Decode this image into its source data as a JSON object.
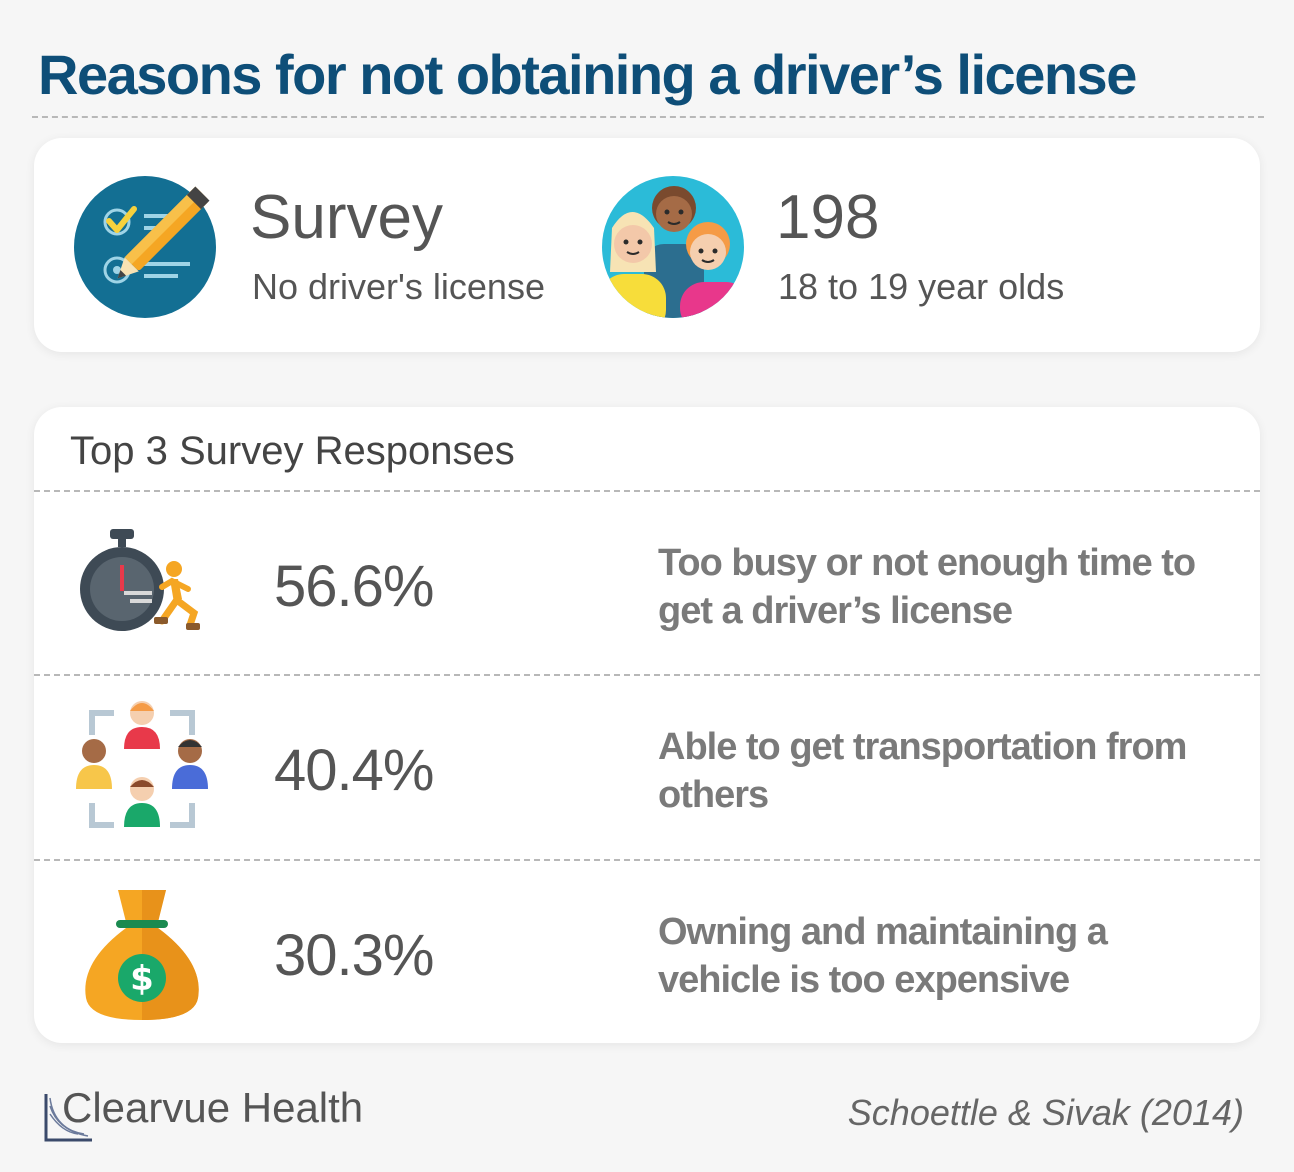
{
  "title": "Reasons for not obtaining a driver’s license",
  "summary": {
    "survey": {
      "heading": "Survey",
      "subtext": "No driver's license",
      "icon": "checklist-pencil-icon"
    },
    "sample": {
      "count": "198",
      "subtext": "18 to 19 year olds",
      "icon": "young-people-group-icon"
    }
  },
  "responses": {
    "heading": "Top 3 Survey Responses",
    "items": [
      {
        "percent": "56.6%",
        "value": 56.6,
        "text": "Too busy or not enough time to get a driver’s license",
        "icon": "stopwatch-runner-icon"
      },
      {
        "percent": "40.4%",
        "value": 40.4,
        "text": "Able to get transportation from others",
        "icon": "people-network-icon"
      },
      {
        "percent": "30.3%",
        "value": 30.3,
        "text": "Owning and maintaining a vehicle is too expensive",
        "icon": "money-bag-icon"
      }
    ]
  },
  "footer": {
    "brand": "Clearvue Health",
    "source": "Schoettle & Sivak (2014)"
  },
  "colors": {
    "title": "#0e4e78",
    "background": "#f6f6f6",
    "card": "#ffffff",
    "text": "#555555",
    "description": "#7a7a7a"
  }
}
